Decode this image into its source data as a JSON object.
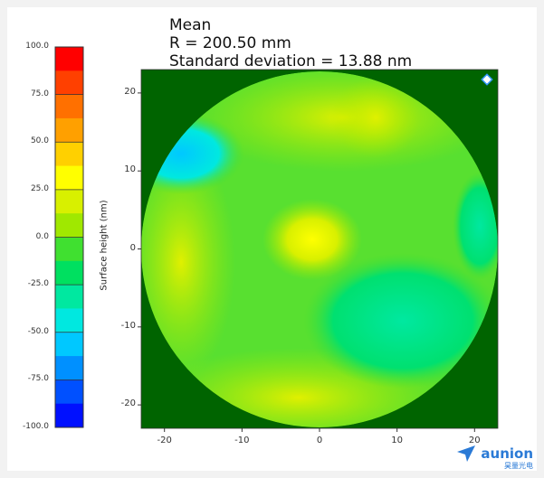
{
  "title": [
    "Mean",
    "R = 200.50 mm",
    "Standard deviation = 13.88 nm"
  ],
  "chart_data": {
    "type": "heatmap",
    "colorbar": {
      "ticks": [
        "100.0",
        "75.0",
        "50.0",
        "25.0",
        "0.0",
        "-25.0",
        "-50.0",
        "-75.0",
        "-100.0"
      ],
      "range": [
        -100,
        100
      ],
      "colors": [
        "#ff0000",
        "#ff4000",
        "#ff7000",
        "#ffa000",
        "#ffd000",
        "#ffff00",
        "#d8f000",
        "#a0e800",
        "#40e030",
        "#00e060",
        "#00e8a0",
        "#00e8e0",
        "#00c8ff",
        "#0090ff",
        "#0050ff",
        "#0010ff"
      ]
    },
    "ylabel": "Surface height (nm)",
    "xlim": [
      -23,
      23
    ],
    "ylim": [
      -23,
      23
    ],
    "x_ticks": [
      "-20",
      "-10",
      "0",
      "10",
      "20"
    ],
    "y_ticks": [
      "20",
      "10",
      "0",
      "-10",
      "-20"
    ],
    "background_color": "#006400",
    "regions": [
      {
        "name": "upper-left edge",
        "value": -45
      },
      {
        "name": "center peak",
        "value": 25
      },
      {
        "name": "lower-right plateau",
        "value": -15
      },
      {
        "name": "bottom rim",
        "value": 30
      },
      {
        "name": "general surface",
        "value": 5
      }
    ]
  },
  "brand": {
    "name": "aunion",
    "sub": "昊量光电"
  }
}
